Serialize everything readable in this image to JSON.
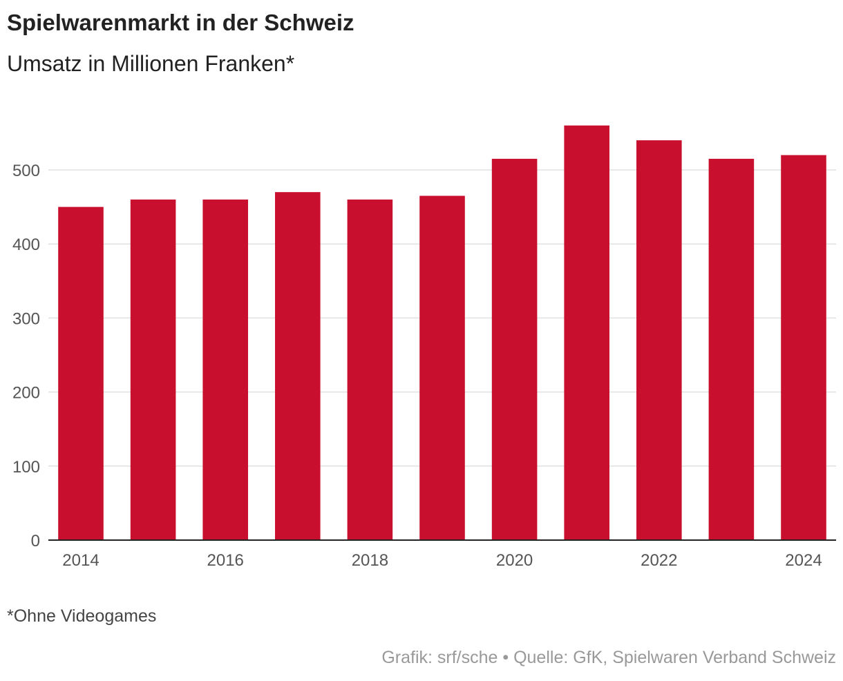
{
  "chart_data": {
    "type": "bar",
    "title": "Spielwarenmarkt in der Schweiz",
    "subtitle": "Umsatz in Millionen Franken*",
    "xlabel": "",
    "ylabel": "",
    "categories": [
      "2014",
      "2015",
      "2016",
      "2017",
      "2018",
      "2019",
      "2020",
      "2021",
      "2022",
      "2023",
      "2024"
    ],
    "x_tick_labels": [
      "2014",
      "2016",
      "2018",
      "2020",
      "2022",
      "2024"
    ],
    "values": [
      450,
      460,
      460,
      470,
      460,
      465,
      515,
      560,
      540,
      515,
      520
    ],
    "ylim": [
      0,
      560
    ],
    "y_ticks": [
      0,
      100,
      200,
      300,
      400,
      500
    ],
    "grid": true,
    "legend": "none",
    "bar_color": "#c8102e"
  },
  "footnote": "*Ohne Videogames",
  "source": "Grafik: srf/sche • Quelle: GfK, Spielwaren Verband Schweiz",
  "colors": {
    "bar": "#c8102e",
    "grid": "#e0e0e0",
    "axis": "#222222",
    "text": "#222222",
    "muted": "#999999"
  }
}
